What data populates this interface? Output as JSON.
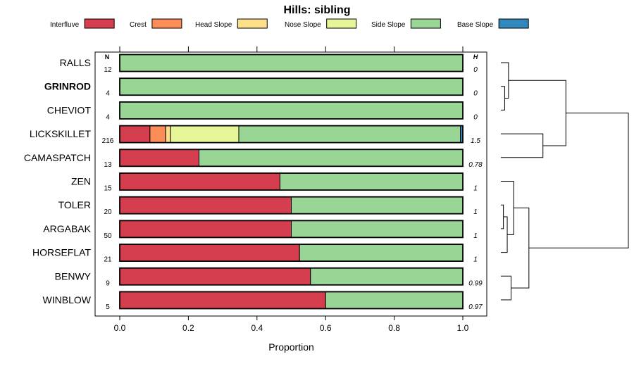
{
  "chart_data": {
    "type": "bar",
    "orientation": "horizontal",
    "stacked": true,
    "title": "Hills: sibling",
    "xlabel": "Proportion",
    "ylabel": "",
    "xlim": [
      0,
      1
    ],
    "x_ticks": [
      "0.0",
      "0.2",
      "0.4",
      "0.6",
      "0.8",
      "1.0"
    ],
    "n_header": "N",
    "h_header": "H",
    "legend_position": "top",
    "series": [
      {
        "name": "Interfluve",
        "color": "#D53E4F"
      },
      {
        "name": "Crest",
        "color": "#FC8D59"
      },
      {
        "name": "Head Slope",
        "color": "#FEE08B"
      },
      {
        "name": "Nose Slope",
        "color": "#E6F598"
      },
      {
        "name": "Side Slope",
        "color": "#99D594"
      },
      {
        "name": "Base Slope",
        "color": "#3288BD"
      }
    ],
    "categories": [
      {
        "name": "RALLS",
        "bold": false,
        "n": "12",
        "h": "0",
        "values": [
          0,
          0,
          0,
          0,
          1.0,
          0
        ]
      },
      {
        "name": "GRINROD",
        "bold": true,
        "n": "4",
        "h": "0",
        "values": [
          0,
          0,
          0,
          0,
          1.0,
          0
        ]
      },
      {
        "name": "CHEVIOT",
        "bold": false,
        "n": "4",
        "h": "0",
        "values": [
          0,
          0,
          0,
          0,
          1.0,
          0
        ]
      },
      {
        "name": "LICKSKILLET",
        "bold": false,
        "n": "216",
        "h": "1.5",
        "values": [
          0.088,
          0.046,
          0.014,
          0.199,
          0.646,
          0.007
        ]
      },
      {
        "name": "CAMASPATCH",
        "bold": false,
        "n": "13",
        "h": "0.78",
        "values": [
          0.231,
          0,
          0,
          0,
          0.769,
          0
        ]
      },
      {
        "name": "ZEN",
        "bold": false,
        "n": "15",
        "h": "1",
        "values": [
          0.467,
          0,
          0,
          0,
          0.533,
          0
        ]
      },
      {
        "name": "TOLER",
        "bold": false,
        "n": "20",
        "h": "1",
        "values": [
          0.5,
          0,
          0,
          0,
          0.5,
          0
        ]
      },
      {
        "name": "ARGABAK",
        "bold": false,
        "n": "50",
        "h": "1",
        "values": [
          0.5,
          0,
          0,
          0,
          0.5,
          0
        ]
      },
      {
        "name": "HORSEFLAT",
        "bold": false,
        "n": "21",
        "h": "1",
        "values": [
          0.524,
          0,
          0,
          0,
          0.476,
          0
        ]
      },
      {
        "name": "BENWY",
        "bold": false,
        "n": "9",
        "h": "0.99",
        "values": [
          0.556,
          0,
          0,
          0,
          0.444,
          0
        ]
      },
      {
        "name": "WINBLOW",
        "bold": false,
        "n": "5",
        "h": "0.97",
        "values": [
          0.6,
          0,
          0,
          0,
          0.4,
          0
        ]
      }
    ],
    "dendrogram": {
      "leaf_order": [
        "RALLS",
        "GRINROD",
        "CHEVIOT",
        "LICKSKILLET",
        "CAMASPATCH",
        "ZEN",
        "TOLER",
        "ARGABAK",
        "HORSEFLAT",
        "BENWY",
        "WINBLOW"
      ],
      "merges": [
        {
          "left": "TOLER",
          "right": "ARGABAK",
          "height": 0.02
        },
        {
          "left": "GRINROD",
          "right": "CHEVIOT",
          "height": 0.03
        },
        {
          "left": "c1",
          "right": "HORSEFLAT",
          "height": 0.05
        },
        {
          "left": "RALLS",
          "right": "c2",
          "height": 0.06
        },
        {
          "left": "BENWY",
          "right": "WINBLOW",
          "height": 0.08
        },
        {
          "left": "ZEN",
          "right": "c3",
          "height": 0.1
        },
        {
          "left": "c6",
          "right": "c5",
          "height": 0.22
        },
        {
          "left": "LICKSKILLET",
          "right": "CAMASPATCH",
          "height": 0.33
        },
        {
          "left": "c4",
          "right": "c8",
          "height": 0.51
        },
        {
          "left": "c9",
          "right": "c7",
          "height": 1.0
        }
      ]
    }
  }
}
